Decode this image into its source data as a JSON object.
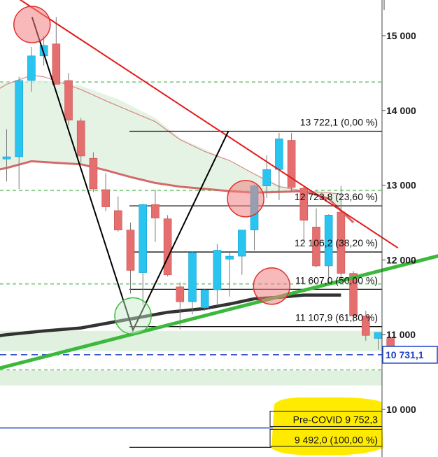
{
  "chart_data": {
    "type": "candlestick",
    "instrument_price_axis": {
      "ylim": [
        9380,
        15320
      ],
      "ticks": [
        {
          "value": 15000,
          "label": "15 000"
        },
        {
          "value": 14000,
          "label": "14 000"
        },
        {
          "value": 13000,
          "label": "13 000"
        },
        {
          "value": 12000,
          "label": "12 000"
        },
        {
          "value": 11000,
          "label": "11 000"
        },
        {
          "value": 10000,
          "label": "10 000"
        }
      ]
    },
    "colors": {
      "up": "#29c4ef",
      "down": "#e56f6f",
      "resistance": "#e21a1a",
      "support": "#3cb93c",
      "ma_long": "#333333",
      "ma_red": "#d46a6a",
      "fib": "#111111",
      "current_price": "#1a3fc2",
      "covid": "#1a3fc2",
      "highlight": "#ffeb00"
    },
    "candles": [
      {
        "o": 13350,
        "h": 13750,
        "l": 13050,
        "c": 13380
      },
      {
        "o": 13380,
        "h": 14450,
        "l": 12950,
        "c": 14400
      },
      {
        "o": 14400,
        "h": 14850,
        "l": 14250,
        "c": 14730
      },
      {
        "o": 14730,
        "h": 15000,
        "l": 14600,
        "c": 14870
      },
      {
        "o": 14890,
        "h": 15250,
        "l": 14350,
        "c": 14350
      },
      {
        "o": 14400,
        "h": 14500,
        "l": 13800,
        "c": 13870
      },
      {
        "o": 13860,
        "h": 13900,
        "l": 13300,
        "c": 13390
      },
      {
        "o": 13360,
        "h": 13440,
        "l": 12910,
        "c": 12950
      },
      {
        "o": 12940,
        "h": 13160,
        "l": 12650,
        "c": 12710
      },
      {
        "o": 12660,
        "h": 12850,
        "l": 12380,
        "c": 12400
      },
      {
        "o": 12400,
        "h": 12500,
        "l": 11550,
        "c": 11860
      },
      {
        "o": 11830,
        "h": 12750,
        "l": 11400,
        "c": 12740
      },
      {
        "o": 12740,
        "h": 12940,
        "l": 12240,
        "c": 12560
      },
      {
        "o": 12550,
        "h": 12600,
        "l": 11780,
        "c": 11800
      },
      {
        "o": 11640,
        "h": 11700,
        "l": 11070,
        "c": 11440
      },
      {
        "o": 11440,
        "h": 12110,
        "l": 11270,
        "c": 12100
      },
      {
        "o": 11360,
        "h": 11610,
        "l": 11320,
        "c": 11600
      },
      {
        "o": 11600,
        "h": 12210,
        "l": 11390,
        "c": 12130
      },
      {
        "o": 12010,
        "h": 12100,
        "l": 11510,
        "c": 12050
      },
      {
        "o": 12050,
        "h": 12400,
        "l": 11800,
        "c": 12400
      },
      {
        "o": 12400,
        "h": 13010,
        "l": 12130,
        "c": 12990
      },
      {
        "o": 12990,
        "h": 13400,
        "l": 12830,
        "c": 13210
      },
      {
        "o": 13210,
        "h": 13700,
        "l": 12800,
        "c": 13620
      },
      {
        "o": 13600,
        "h": 13700,
        "l": 12910,
        "c": 12970
      },
      {
        "o": 12960,
        "h": 12990,
        "l": 12260,
        "c": 12530
      },
      {
        "o": 12440,
        "h": 12690,
        "l": 11900,
        "c": 11920
      },
      {
        "o": 11920,
        "h": 12610,
        "l": 11700,
        "c": 12600
      },
      {
        "o": 12640,
        "h": 12990,
        "l": 11700,
        "c": 11820
      },
      {
        "o": 11820,
        "h": 11850,
        "l": 11170,
        "c": 11250
      },
      {
        "o": 11250,
        "h": 11320,
        "l": 10920,
        "c": 10990
      },
      {
        "o": 10950,
        "h": 11030,
        "l": 10800,
        "c": 11030
      },
      {
        "o": 10950,
        "h": 10960,
        "l": 10720,
        "c": 10731
      }
    ],
    "fibonacci": [
      {
        "value": 13722.1,
        "label": "13 722,1 (0,00 %)"
      },
      {
        "value": 12723.8,
        "label": "12 723,8 (23,60 %)"
      },
      {
        "value": 12106.2,
        "label": "12 106,2 (38,20 %)"
      },
      {
        "value": 11607.0,
        "label": "11 607,0 (50,00 %)"
      },
      {
        "value": 11107.9,
        "label": "11 107,9 (61,80 %)"
      },
      {
        "value": 9492.0,
        "label": "9 492,0 (100,00 %)"
      }
    ],
    "current_price": {
      "value": 10731.1,
      "label": "10 731,1"
    },
    "pre_covid": {
      "value": 9752.3,
      "label": "Pre-COVID 9 752,3"
    },
    "green_dashed_levels": [
      14380,
      12930,
      11680,
      10530
    ],
    "green_zones": [
      [
        10780,
        11050
      ],
      [
        10320,
        10520
      ]
    ],
    "resistance_line": [
      [
        0,
        15600
      ],
      [
        31.6,
        12160
      ]
    ],
    "support_line": [
      [
        -2.5,
        10470
      ],
      [
        35,
        12060
      ]
    ],
    "zigzag": [
      [
        2.05,
        15250
      ],
      [
        10.2,
        11060
      ],
      [
        17.9,
        13720
      ]
    ],
    "ma_long": [
      [
        -2.5,
        10940
      ],
      [
        0,
        11000
      ],
      [
        3,
        11050
      ],
      [
        6,
        11090
      ],
      [
        9,
        11180
      ],
      [
        11,
        11240
      ],
      [
        13,
        11300
      ],
      [
        16,
        11350
      ],
      [
        18,
        11410
      ],
      [
        20,
        11480
      ],
      [
        22,
        11500
      ],
      [
        24,
        11530
      ],
      [
        27,
        11530
      ]
    ],
    "ma_red": [
      [
        -2.5,
        13150
      ],
      [
        0,
        13230
      ],
      [
        2,
        13320
      ],
      [
        4,
        13300
      ],
      [
        6,
        13280
      ],
      [
        8,
        13200
      ],
      [
        10,
        13110
      ],
      [
        12,
        13030
      ],
      [
        14,
        12980
      ],
      [
        16,
        12950
      ],
      [
        18,
        12920
      ],
      [
        20,
        12900
      ],
      [
        22,
        12910
      ],
      [
        24,
        12920
      ],
      [
        26,
        12820
      ],
      [
        27,
        12660
      ],
      [
        28,
        12500
      ]
    ],
    "ma_thin": [
      [
        -2.5,
        14100
      ],
      [
        0,
        14350
      ],
      [
        2,
        14470
      ],
      [
        3,
        14450
      ],
      [
        6,
        14280
      ],
      [
        8,
        14130
      ],
      [
        10,
        13990
      ],
      [
        12,
        13850
      ],
      [
        14,
        13610
      ],
      [
        16,
        13450
      ],
      [
        18,
        13330
      ],
      [
        20,
        13150
      ],
      [
        22,
        12980
      ],
      [
        24,
        12920
      ],
      [
        26,
        12900
      ],
      [
        27,
        12880
      ]
    ],
    "cloud_upper": [
      [
        -2.5,
        14250
      ],
      [
        0,
        14380
      ],
      [
        3,
        14400
      ],
      [
        6,
        14330
      ],
      [
        9,
        14150
      ],
      [
        12,
        13900
      ],
      [
        14,
        13630
      ],
      [
        16,
        13480
      ],
      [
        18,
        13320
      ],
      [
        20,
        13150
      ],
      [
        22,
        13000
      ],
      [
        24,
        12930
      ],
      [
        26,
        12900
      ],
      [
        27,
        12880
      ]
    ],
    "circles": [
      {
        "i": 2.05,
        "v": 15150,
        "color": "red"
      },
      {
        "i": 10.2,
        "v": 11250,
        "color": "green"
      },
      {
        "i": 19.3,
        "v": 12820,
        "color": "red"
      },
      {
        "i": 21.4,
        "v": 11650,
        "color": "red"
      }
    ]
  }
}
